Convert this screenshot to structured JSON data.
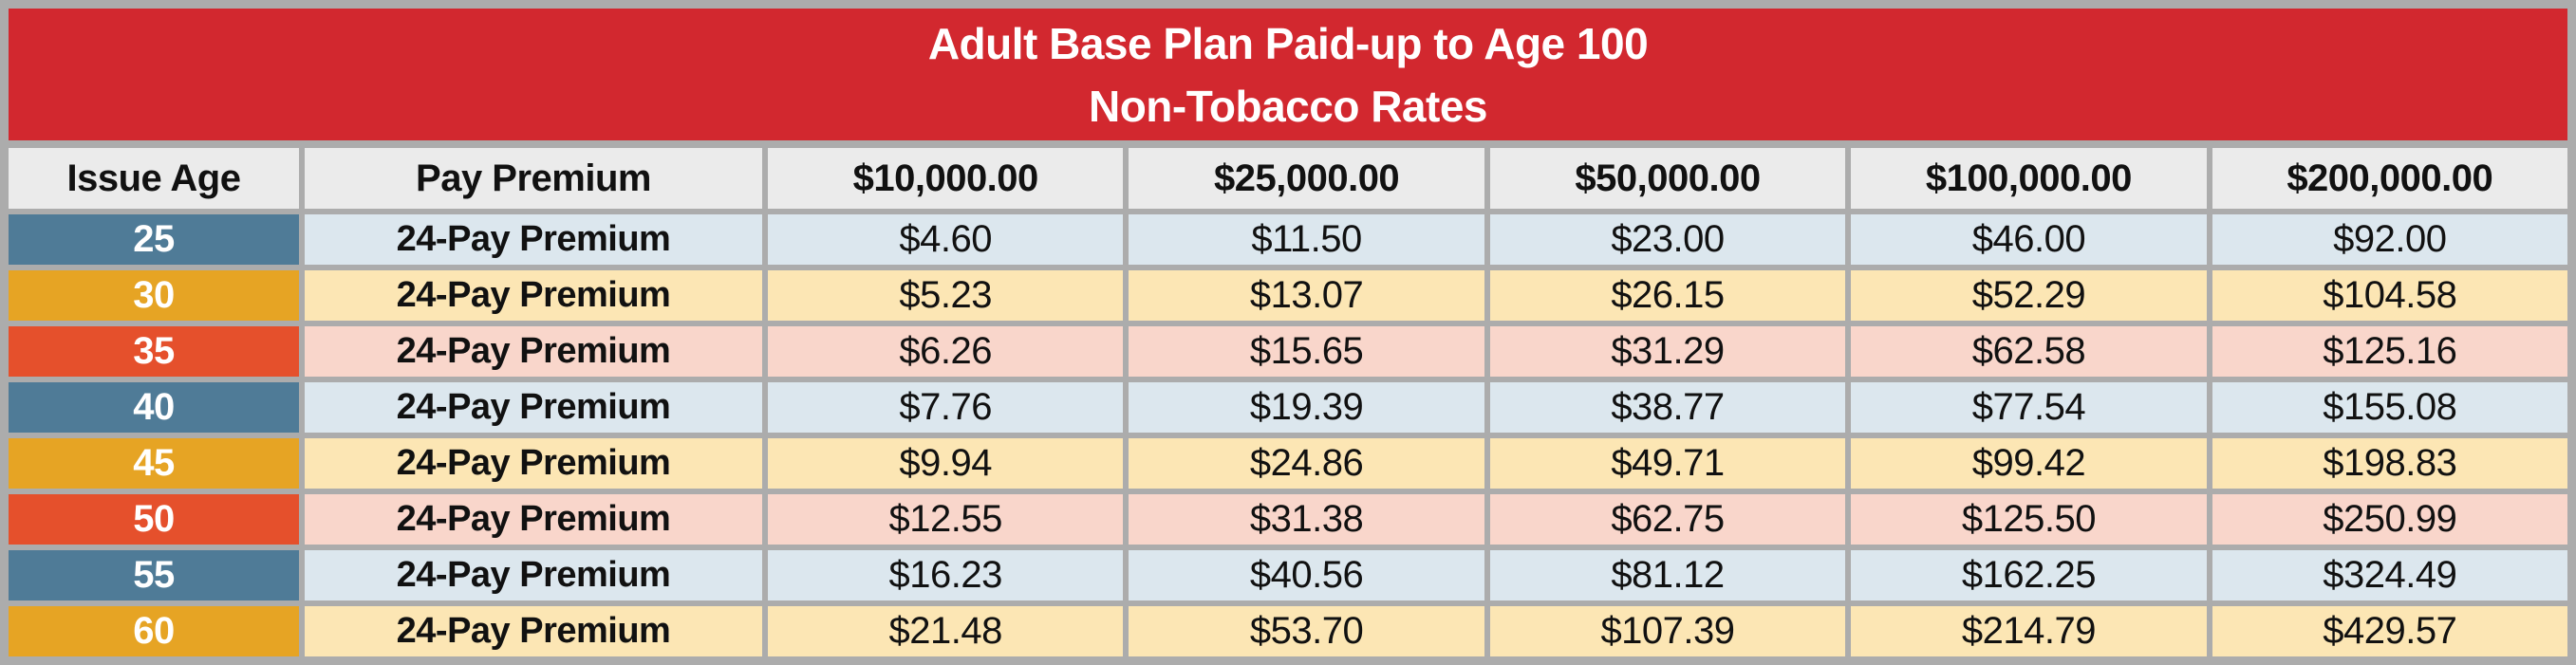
{
  "title": {
    "line1": "Adult Base Plan Paid-up to Age 100",
    "line2": "Non-Tobacco Rates"
  },
  "table": {
    "columns": [
      "Issue Age",
      "Pay Premium",
      "$10,000.00",
      "$25,000.00",
      "$50,000.00",
      "$100,000.00",
      "$200,000.00"
    ],
    "rows": [
      {
        "age": "25",
        "premium_type": "24-Pay Premium",
        "theme": "blue",
        "values": [
          "$4.60",
          "$11.50",
          "$23.00",
          "$46.00",
          "$92.00"
        ]
      },
      {
        "age": "30",
        "premium_type": "24-Pay Premium",
        "theme": "amber",
        "values": [
          "$5.23",
          "$13.07",
          "$26.15",
          "$52.29",
          "$104.58"
        ]
      },
      {
        "age": "35",
        "premium_type": "24-Pay Premium",
        "theme": "red",
        "values": [
          "$6.26",
          "$15.65",
          "$31.29",
          "$62.58",
          "$125.16"
        ]
      },
      {
        "age": "40",
        "premium_type": "24-Pay Premium",
        "theme": "blue",
        "values": [
          "$7.76",
          "$19.39",
          "$38.77",
          "$77.54",
          "$155.08"
        ]
      },
      {
        "age": "45",
        "premium_type": "24-Pay Premium",
        "theme": "amber",
        "values": [
          "$9.94",
          "$24.86",
          "$49.71",
          "$99.42",
          "$198.83"
        ]
      },
      {
        "age": "50",
        "premium_type": "24-Pay Premium",
        "theme": "red",
        "values": [
          "$12.55",
          "$31.38",
          "$62.75",
          "$125.50",
          "$250.99"
        ]
      },
      {
        "age": "55",
        "premium_type": "24-Pay Premium",
        "theme": "blue",
        "values": [
          "$16.23",
          "$40.56",
          "$81.12",
          "$162.25",
          "$324.49"
        ]
      },
      {
        "age": "60",
        "premium_type": "24-Pay Premium",
        "theme": "amber",
        "values": [
          "$21.48",
          "$53.70",
          "$107.39",
          "$214.79",
          "$429.57"
        ]
      }
    ]
  },
  "colors": {
    "title_bg": "#D2282F",
    "title_text": "#FFFFFF",
    "frame_gray": "#ACACAC",
    "header_bg": "#EBEBEB",
    "age_blue": "#4F7B97",
    "age_amber": "#E6A424",
    "age_red": "#E5502C",
    "row_blue": "#DCE7EE",
    "row_yellow": "#FCE6B4",
    "row_pink": "#F9D6CB"
  }
}
